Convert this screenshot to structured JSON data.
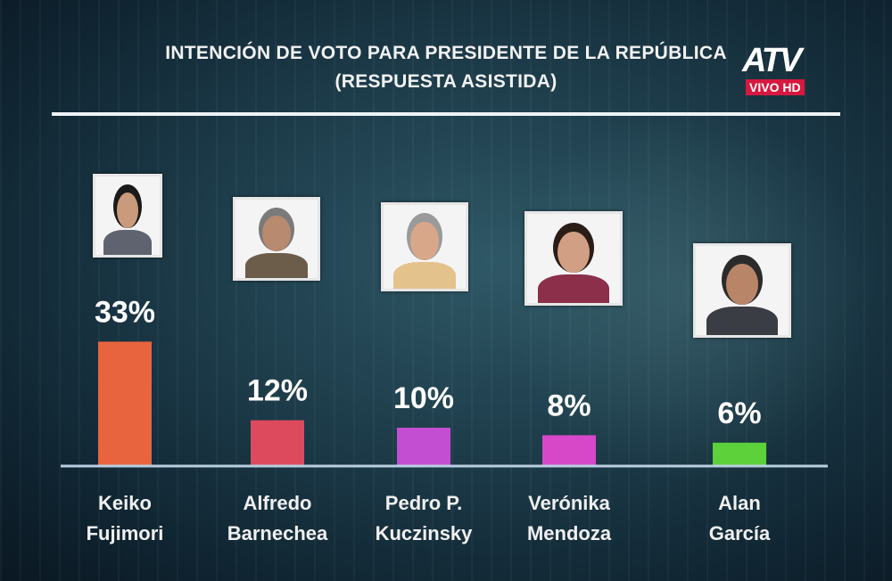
{
  "header": {
    "title_line1": "INTENCIÓN DE VOTO PARA PRESIDENTE DE LA REPÚBLICA",
    "title_line2": "(RESPUESTA ASISTIDA)"
  },
  "logo": {
    "brand": "ATV",
    "badge": "VIVO HD"
  },
  "chart_data": {
    "type": "bar",
    "title": "INTENCIÓN DE VOTO PARA PRESIDENTE DE LA REPÚBLICA (RESPUESTA ASISTIDA)",
    "categories": [
      "Keiko Fujimori",
      "Alfredo Barnechea",
      "Pedro P. Kuczinsky",
      "Verónika Mendoza",
      "Alan García"
    ],
    "category_lines": [
      [
        "Keiko",
        "Fujimori"
      ],
      [
        "Alfredo",
        "Barnechea"
      ],
      [
        "Pedro P.",
        "Kuczinsky"
      ],
      [
        "Verónika",
        "Mendoza"
      ],
      [
        "Alan",
        "García"
      ]
    ],
    "values": [
      33,
      12,
      10,
      8,
      6
    ],
    "value_labels": [
      "33%",
      "12%",
      "10%",
      "8%",
      "6%"
    ],
    "bar_colors": [
      "#e8643e",
      "#dd4a5e",
      "#c34ed2",
      "#d648c8",
      "#5cd13a"
    ],
    "grid": false,
    "legend": "none"
  }
}
